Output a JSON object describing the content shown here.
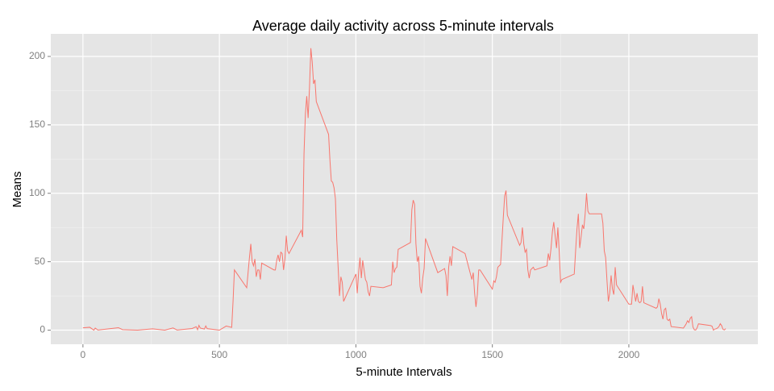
{
  "chart_data": {
    "type": "line",
    "title": "Average daily activity across 5-minute intervals",
    "x_label": "5-minute Intervals",
    "y_label": "Means",
    "x": [
      0,
      25,
      40,
      45,
      55,
      130,
      145,
      200,
      255,
      300,
      330,
      345,
      400,
      415,
      420,
      425,
      430,
      445,
      450,
      455,
      500,
      525,
      545,
      550,
      555,
      600,
      610,
      615,
      620,
      625,
      630,
      635,
      640,
      645,
      650,
      655,
      700,
      705,
      710,
      715,
      720,
      725,
      730,
      735,
      740,
      745,
      750,
      755,
      800,
      805,
      810,
      815,
      820,
      825,
      830,
      835,
      840,
      845,
      850,
      855,
      900,
      905,
      910,
      915,
      920,
      925,
      930,
      935,
      940,
      945,
      950,
      955,
      1000,
      1005,
      1010,
      1015,
      1020,
      1025,
      1030,
      1035,
      1040,
      1045,
      1050,
      1055,
      1100,
      1130,
      1135,
      1140,
      1145,
      1150,
      1155,
      1200,
      1205,
      1210,
      1215,
      1220,
      1225,
      1230,
      1235,
      1240,
      1245,
      1250,
      1255,
      1300,
      1325,
      1330,
      1335,
      1340,
      1345,
      1350,
      1355,
      1400,
      1425,
      1430,
      1435,
      1440,
      1445,
      1450,
      1455,
      1500,
      1505,
      1510,
      1515,
      1520,
      1525,
      1530,
      1535,
      1540,
      1545,
      1550,
      1555,
      1600,
      1605,
      1610,
      1615,
      1620,
      1625,
      1630,
      1635,
      1640,
      1645,
      1650,
      1655,
      1700,
      1705,
      1710,
      1715,
      1720,
      1725,
      1730,
      1735,
      1740,
      1745,
      1750,
      1755,
      1800,
      1805,
      1810,
      1815,
      1820,
      1825,
      1830,
      1835,
      1840,
      1845,
      1850,
      1855,
      1900,
      1905,
      1910,
      1915,
      1920,
      1925,
      1930,
      1935,
      1940,
      1945,
      1950,
      1955,
      2000,
      2005,
      2010,
      2015,
      2020,
      2025,
      2030,
      2035,
      2040,
      2045,
      2050,
      2055,
      2100,
      2105,
      2110,
      2115,
      2120,
      2125,
      2130,
      2135,
      2140,
      2145,
      2150,
      2155,
      2200,
      2205,
      2210,
      2215,
      2220,
      2225,
      2230,
      2235,
      2240,
      2245,
      2250,
      2255,
      2300,
      2305,
      2310,
      2315,
      2320,
      2325,
      2330,
      2335,
      2340,
      2345,
      2350,
      2355
    ],
    "series": [
      {
        "name": "Means",
        "color": "#F8766D",
        "values": [
          1.7,
          2.1,
          0,
          1.5,
          0.1,
          1.8,
          0.4,
          0,
          1,
          0,
          1.6,
          0.1,
          1.2,
          2.5,
          0.3,
          3.5,
          1.5,
          0.8,
          3.1,
          1.1,
          0,
          3,
          2,
          21,
          44,
          31,
          53,
          63,
          50,
          47,
          52,
          39,
          44,
          44,
          37,
          49,
          44,
          44,
          51,
          55,
          50,
          57,
          56,
          44,
          52,
          69,
          58,
          56,
          73,
          68,
          129,
          158,
          171,
          155,
          177,
          206,
          196,
          180,
          183,
          167,
          143,
          124,
          109,
          108,
          104,
          96,
          66,
          46,
          25,
          39,
          35,
          21,
          41,
          27,
          42,
          53,
          38,
          51,
          44,
          37,
          35,
          28,
          25,
          32,
          31,
          33,
          50,
          42,
          45,
          46,
          59,
          64,
          88,
          95,
          92,
          63,
          50,
          54,
          32,
          27,
          38,
          45,
          67,
          42,
          45,
          40,
          25,
          46,
          54,
          47,
          61,
          56,
          37,
          42,
          27,
          17,
          26,
          44,
          44,
          30,
          36,
          35,
          39,
          46,
          47,
          48,
          65,
          82,
          98,
          102,
          84,
          62,
          64,
          75,
          63,
          57,
          59,
          44,
          38,
          44,
          45,
          46,
          44,
          47,
          56,
          51,
          60,
          72,
          79,
          69,
          60,
          75,
          57,
          35,
          37,
          41,
          58,
          74,
          85,
          60,
          68,
          77,
          74,
          85,
          100,
          87,
          85,
          85,
          78,
          58,
          53,
          36,
          21,
          27,
          40,
          30,
          26,
          46,
          33,
          19,
          19,
          19,
          33,
          27,
          21,
          27,
          21,
          20,
          21,
          32,
          20,
          16,
          17,
          23,
          19,
          12,
          8,
          15,
          16,
          8,
          7,
          8,
          2.6,
          1.5,
          3,
          4.6,
          6.9,
          5.6,
          8.7,
          9.8,
          2.2,
          0.3,
          0.1,
          1.6,
          4.6,
          3.3,
          2.8,
          0,
          0.8,
          1,
          1.6,
          2.6,
          4.7,
          3.3,
          0.6,
          0.2,
          1.1
        ]
      }
    ],
    "xlim": [
      -117.75,
      2472.75
    ],
    "ylim": [
      -10.3,
      216.5
    ],
    "xticks": [
      0,
      500,
      1000,
      1500,
      2000
    ],
    "yticks": [
      0,
      50,
      100,
      150,
      200
    ],
    "grid": true
  }
}
